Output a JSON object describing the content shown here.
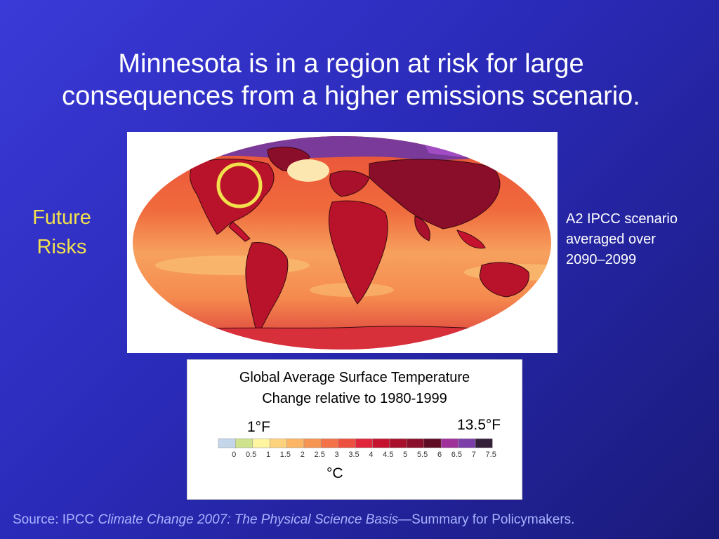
{
  "slide": {
    "title_line1": "Minnesota is in a region at risk for large",
    "title_line2": "consequences from a higher emissions scenario.",
    "side_label_line1": "Future",
    "side_label_line2": "Risks",
    "scenario_line1": "A2 IPCC scenario",
    "scenario_line2": "averaged over",
    "scenario_line3": "2090–2099"
  },
  "map": {
    "highlight_region": "Minnesota",
    "highlight_color": "#f2e14c",
    "colors": {
      "ocean_warm": "#f06a3c",
      "ocean_cool": "#f7a15e",
      "land_hot": "#b8132a",
      "land_very_hot": "#8a0d2a",
      "arctic": "#7a3a9a",
      "north_atlantic": "#fde7b0"
    }
  },
  "legend": {
    "title_line1": "Global Average Surface Temperature",
    "title_line2": "Change relative to 1980-1999",
    "low_label": "1°F",
    "high_label": "13.5°F",
    "unit": "°C",
    "ticks": [
      "0",
      "0.5",
      "1",
      "1.5",
      "2",
      "2.5",
      "3",
      "3.5",
      "4",
      "4.5",
      "5",
      "5.5",
      "6",
      "6.5",
      "7",
      "7.5"
    ],
    "swatches": [
      "#c4d6ea",
      "#cfe38f",
      "#fff4a0",
      "#fdd27c",
      "#fbb565",
      "#f69552",
      "#f37247",
      "#ee5040",
      "#e0253a",
      "#c5122f",
      "#a8102c",
      "#8a0f2a",
      "#5f0d24",
      "#a0309a",
      "#7c3faa",
      "#352039"
    ]
  },
  "source": {
    "prefix": "Source: IPCC ",
    "italic": "Climate Change 2007: The Physical Science Basis",
    "suffix": "—Summary for Policymakers."
  }
}
